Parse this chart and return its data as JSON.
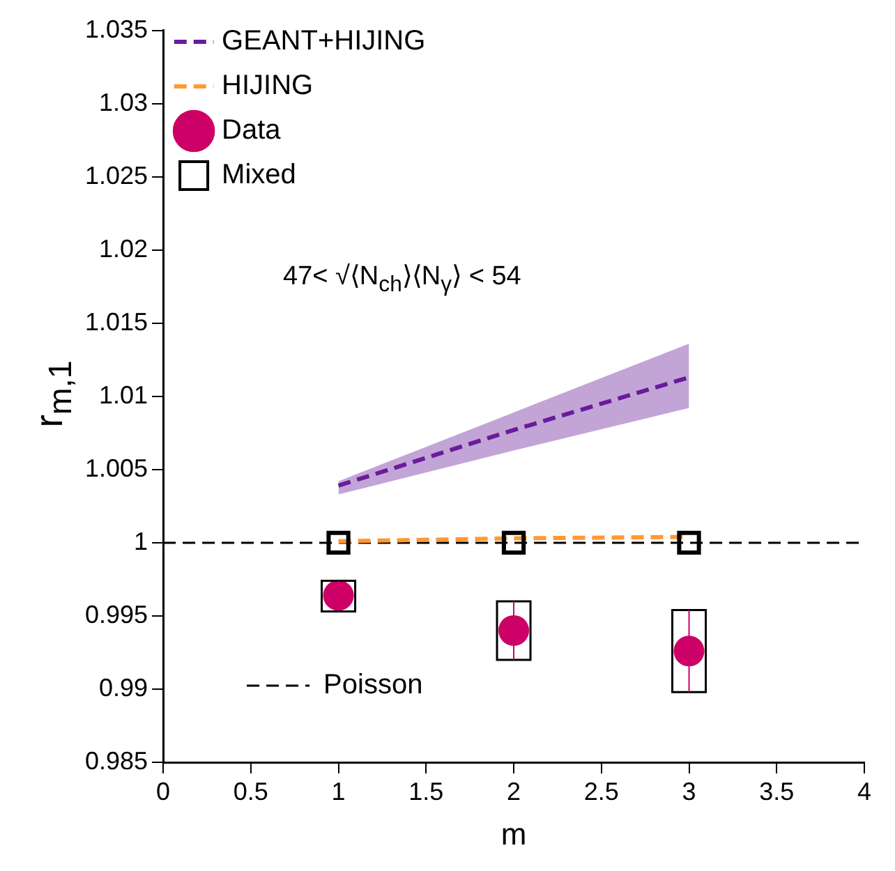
{
  "chart_data": {
    "type": "scatter",
    "xlabel": "m",
    "ylabel": "r$_{m,1}$",
    "xlim": [
      0,
      4
    ],
    "xticks": [
      0,
      0.5,
      1,
      1.5,
      2,
      2.5,
      3,
      3.5,
      4
    ],
    "ylim": [
      0.985,
      1.035
    ],
    "yticks": [
      0.985,
      0.99,
      0.995,
      1,
      1.005,
      1.01,
      1.015,
      1.02,
      1.025,
      1.03,
      1.035
    ],
    "grid": false,
    "legend": "top left",
    "annotations": [
      "47< √⟨N$_{ch}$⟩⟨N$_{γ}$⟩ < 54"
    ],
    "ref_lines": [
      {
        "axis": "y",
        "value": 1,
        "label": "Poisson",
        "color": "#000000",
        "line_style": "dashed"
      }
    ],
    "series": [
      {
        "name": "GEANT+HIJING",
        "type": "line",
        "color": "#6a1b9a",
        "line_style": "dashed",
        "marker": "none",
        "x": [
          1,
          2,
          3
        ],
        "values": [
          1.0039,
          1.0077,
          1.0113
        ],
        "lower": [
          1.0033,
          1.0063,
          1.0092
        ],
        "upper": [
          1.0042,
          1.0089,
          1.0136
        ]
      },
      {
        "name": "HIJING",
        "type": "line",
        "color": "#ff9933",
        "line_style": "dashed",
        "marker": "none",
        "x": [
          1,
          2,
          3
        ],
        "values": [
          1.0001,
          1.0003,
          1.0004
        ]
      },
      {
        "name": "Data",
        "type": "scatter",
        "color": "#cc0066",
        "marker": "circle",
        "x": [
          1,
          2,
          3
        ],
        "values": [
          0.9964,
          0.994,
          0.9926
        ],
        "errors": [
          [
            0.9953,
            0.9974
          ],
          [
            0.992,
            0.996
          ],
          [
            0.9898,
            0.9954
          ]
        ]
      },
      {
        "name": "Mixed",
        "type": "scatter",
        "color": "#000000",
        "marker": "square",
        "x": [
          1,
          2,
          3
        ],
        "values": [
          1,
          1,
          1
        ]
      }
    ]
  }
}
